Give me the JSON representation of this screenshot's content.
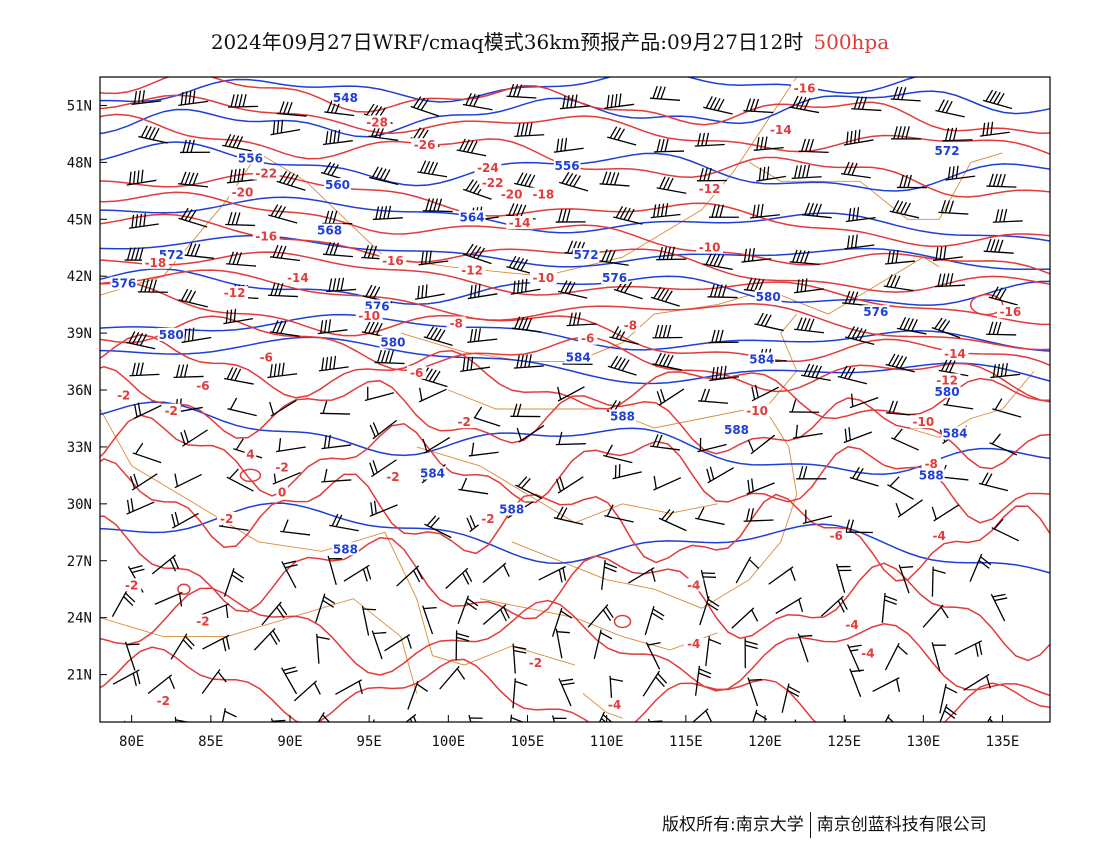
{
  "header": {
    "title": "2024年09月27日WRF/cmaq模式36km预报产品:09月27日12时",
    "level": "500hpa"
  },
  "footer": {
    "owner": "版权所有:南京大学",
    "partner": "南京创蓝科技有限公司"
  },
  "map": {
    "lon_ticks": [
      "80E",
      "85E",
      "90E",
      "95E",
      "100E",
      "105E",
      "110E",
      "115E",
      "120E",
      "125E",
      "130E",
      "135E"
    ],
    "lat_ticks": [
      "51N",
      "48N",
      "45N",
      "42N",
      "39N",
      "36N",
      "33N",
      "30N",
      "27N",
      "24N",
      "21N"
    ],
    "colors": {
      "geopotential": "#1f3fd6",
      "temperature": "#e23b3b",
      "borders": "#d98b3a",
      "wind_barbs": "#000000"
    },
    "geopotential_labels": [
      {
        "text": "548",
        "lon": 93.5,
        "lat": 51.3
      },
      {
        "text": "556",
        "lon": 87.5,
        "lat": 48.1
      },
      {
        "text": "556",
        "lon": 107.5,
        "lat": 47.7
      },
      {
        "text": "560",
        "lon": 93.0,
        "lat": 46.7
      },
      {
        "text": "564",
        "lon": 101.5,
        "lat": 45.0
      },
      {
        "text": "568",
        "lon": 92.5,
        "lat": 44.3
      },
      {
        "text": "572",
        "lon": 82.5,
        "lat": 43.0
      },
      {
        "text": "572",
        "lon": 108.7,
        "lat": 43.0
      },
      {
        "text": "576",
        "lon": 79.5,
        "lat": 41.5
      },
      {
        "text": "576",
        "lon": 110.5,
        "lat": 41.8
      },
      {
        "text": "576",
        "lon": 95.5,
        "lat": 40.3
      },
      {
        "text": "580",
        "lon": 82.5,
        "lat": 38.8
      },
      {
        "text": "580",
        "lon": 96.5,
        "lat": 38.4
      },
      {
        "text": "580",
        "lon": 120.2,
        "lat": 40.8
      },
      {
        "text": "584",
        "lon": 108.2,
        "lat": 37.6
      },
      {
        "text": "584",
        "lon": 119.8,
        "lat": 37.5
      },
      {
        "text": "588",
        "lon": 111.0,
        "lat": 34.5
      },
      {
        "text": "588",
        "lon": 118.2,
        "lat": 33.8
      },
      {
        "text": "584",
        "lon": 99.0,
        "lat": 31.5
      },
      {
        "text": "588",
        "lon": 104.0,
        "lat": 29.6
      },
      {
        "text": "588",
        "lon": 93.5,
        "lat": 27.5
      },
      {
        "text": "576",
        "lon": 127.0,
        "lat": 40.0
      },
      {
        "text": "572",
        "lon": 131.5,
        "lat": 48.5
      },
      {
        "text": "580",
        "lon": 131.5,
        "lat": 35.8
      },
      {
        "text": "584",
        "lon": 132.0,
        "lat": 33.6
      },
      {
        "text": "588",
        "lon": 130.5,
        "lat": 31.4
      }
    ],
    "temperature_labels": [
      {
        "text": "-28",
        "lon": 95.5,
        "lat": 50.0
      },
      {
        "text": "-26",
        "lon": 98.5,
        "lat": 48.8
      },
      {
        "text": "-24",
        "lon": 102.5,
        "lat": 47.6
      },
      {
        "text": "-22",
        "lon": 88.5,
        "lat": 47.3
      },
      {
        "text": "-22",
        "lon": 102.8,
        "lat": 46.8
      },
      {
        "text": "-20",
        "lon": 87.0,
        "lat": 46.3
      },
      {
        "text": "-20",
        "lon": 104.0,
        "lat": 46.2
      },
      {
        "text": "-18",
        "lon": 106.0,
        "lat": 46.2
      },
      {
        "text": "-18",
        "lon": 81.5,
        "lat": 42.6
      },
      {
        "text": "-16",
        "lon": 88.5,
        "lat": 44.0
      },
      {
        "text": "-16",
        "lon": 96.5,
        "lat": 42.7
      },
      {
        "text": "-14",
        "lon": 90.5,
        "lat": 41.8
      },
      {
        "text": "-14",
        "lon": 104.5,
        "lat": 44.7
      },
      {
        "text": "-12",
        "lon": 86.5,
        "lat": 41.0
      },
      {
        "text": "-12",
        "lon": 101.5,
        "lat": 42.2
      },
      {
        "text": "-10",
        "lon": 95.0,
        "lat": 39.8
      },
      {
        "text": "-10",
        "lon": 106.0,
        "lat": 41.8
      },
      {
        "text": "-10",
        "lon": 116.5,
        "lat": 43.4
      },
      {
        "text": "-8",
        "lon": 100.5,
        "lat": 39.4
      },
      {
        "text": "-8",
        "lon": 111.5,
        "lat": 39.3
      },
      {
        "text": "-6",
        "lon": 88.5,
        "lat": 37.6
      },
      {
        "text": "-6",
        "lon": 108.8,
        "lat": 38.6
      },
      {
        "text": "-6",
        "lon": 98.0,
        "lat": 36.8
      },
      {
        "text": "-6",
        "lon": 84.5,
        "lat": 36.1
      },
      {
        "text": "-2",
        "lon": 79.5,
        "lat": 35.6
      },
      {
        "text": "-2",
        "lon": 82.5,
        "lat": 34.8
      },
      {
        "text": "-2",
        "lon": 101.0,
        "lat": 34.2
      },
      {
        "text": "-2",
        "lon": 89.5,
        "lat": 31.8
      },
      {
        "text": "-2",
        "lon": 96.5,
        "lat": 31.3
      },
      {
        "text": "-2",
        "lon": 86.0,
        "lat": 29.1
      },
      {
        "text": "-2",
        "lon": 102.5,
        "lat": 29.1
      },
      {
        "text": "-2",
        "lon": 80.0,
        "lat": 25.6
      },
      {
        "text": "-2",
        "lon": 84.5,
        "lat": 23.7
      },
      {
        "text": "-2",
        "lon": 105.5,
        "lat": 21.5
      },
      {
        "text": "-2",
        "lon": 82.0,
        "lat": 19.5
      },
      {
        "text": "4",
        "lon": 87.5,
        "lat": 32.5
      },
      {
        "text": "0",
        "lon": 89.5,
        "lat": 30.5
      },
      {
        "text": "-10",
        "lon": 119.5,
        "lat": 34.8
      },
      {
        "text": "-10",
        "lon": 130.0,
        "lat": 34.2
      },
      {
        "text": "-12",
        "lon": 131.5,
        "lat": 36.4
      },
      {
        "text": "-14",
        "lon": 132.0,
        "lat": 37.8
      },
      {
        "text": "-16",
        "lon": 135.5,
        "lat": 40.0
      },
      {
        "text": "-16",
        "lon": 122.5,
        "lat": 51.8
      },
      {
        "text": "-14",
        "lon": 121.0,
        "lat": 49.6
      },
      {
        "text": "-12",
        "lon": 116.5,
        "lat": 46.5
      },
      {
        "text": "-8",
        "lon": 130.5,
        "lat": 32.0
      },
      {
        "text": "-6",
        "lon": 124.5,
        "lat": 28.2
      },
      {
        "text": "-4",
        "lon": 131.0,
        "lat": 28.2
      },
      {
        "text": "-4",
        "lon": 125.5,
        "lat": 23.5
      },
      {
        "text": "-4",
        "lon": 126.5,
        "lat": 22.0
      },
      {
        "text": "-4",
        "lon": 115.5,
        "lat": 25.6
      },
      {
        "text": "-4",
        "lon": 115.5,
        "lat": 22.5
      },
      {
        "text": "-4",
        "lon": 110.5,
        "lat": 19.3
      }
    ]
  }
}
